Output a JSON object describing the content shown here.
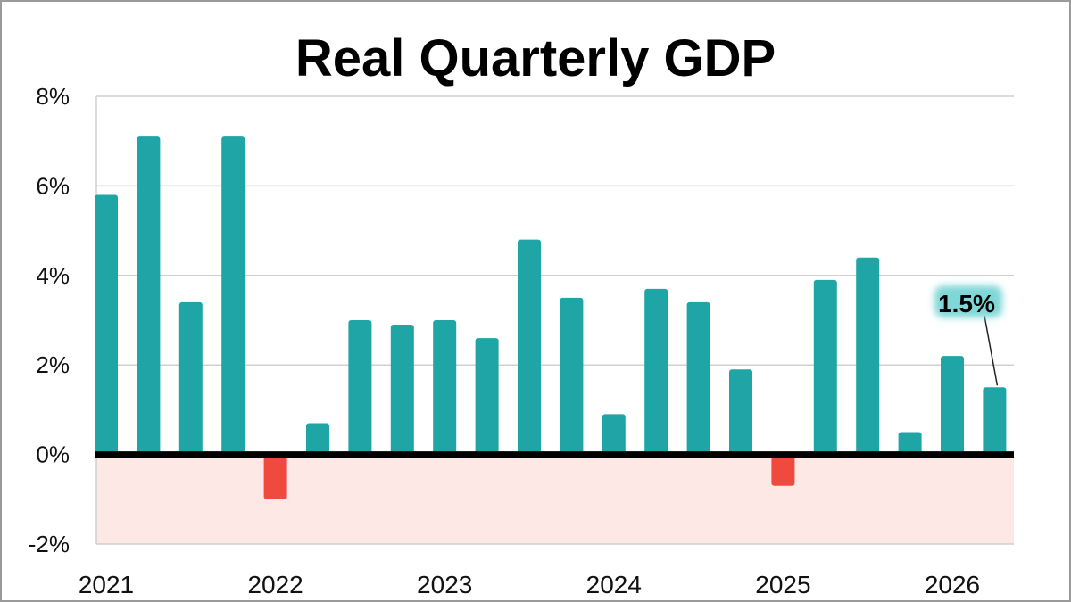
{
  "chart_data": {
    "type": "bar",
    "title": "Real Quarterly GDP",
    "xlabel": "",
    "ylabel": "",
    "ylim": [
      -2,
      8
    ],
    "yticks": [
      -2,
      0,
      2,
      4,
      6,
      8
    ],
    "ytick_labels": [
      "-2%",
      "0%",
      "2%",
      "4%",
      "6%",
      "8%"
    ],
    "year_labels": [
      "2021",
      "2022",
      "2023",
      "2024",
      "2025",
      "2026"
    ],
    "categories": [
      "2021 Q1",
      "2021 Q2",
      "2021 Q3",
      "2021 Q4",
      "2022 Q1",
      "2022 Q2",
      "2022 Q3",
      "2022 Q4",
      "2023 Q1",
      "2023 Q2",
      "2023 Q3",
      "2023 Q4",
      "2024 Q1",
      "2024 Q2",
      "2024 Q3",
      "2024 Q4",
      "2025 Q1",
      "2025 Q2",
      "2025 Q3",
      "2025 Q4",
      "2026 Q1",
      "2026 Q2"
    ],
    "values": [
      5.8,
      7.1,
      3.4,
      7.1,
      -1.0,
      0.7,
      3.0,
      2.9,
      3.0,
      2.6,
      4.8,
      3.5,
      0.9,
      3.7,
      3.4,
      1.9,
      -0.7,
      3.9,
      4.4,
      0.5,
      2.2,
      1.5
    ],
    "annotation": {
      "text": "1.5%",
      "category": "2026 Q2",
      "value": 1.5
    },
    "grid": true,
    "legend": "none",
    "colors": {
      "positive": "#1fa5a5",
      "negative": "#f04a3e",
      "negative_zone": "#fde8e6",
      "grid": "#d0d0d0",
      "zero_line": "#000000",
      "callout_glow": "#7fd7d7"
    }
  }
}
